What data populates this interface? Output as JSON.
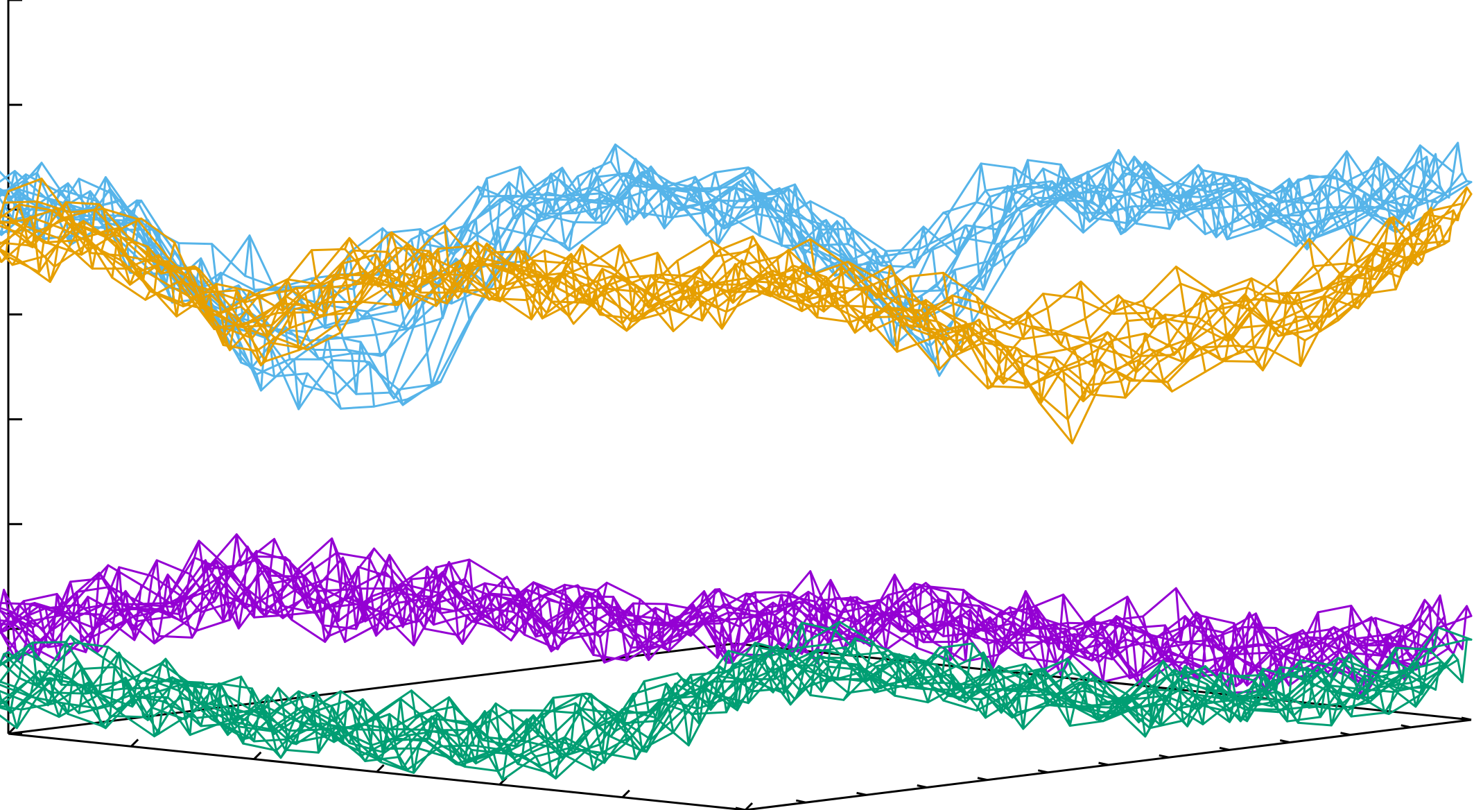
{
  "chart_data": {
    "type": "surface",
    "title": "",
    "xlabel": "",
    "ylabel": "",
    "zlabel": "",
    "tick_labels": "none",
    "z_ticks": [
      0,
      1,
      2,
      3,
      4,
      5,
      6,
      7
    ],
    "zlim": [
      0,
      7
    ],
    "x_ticks": [
      0,
      1,
      2,
      3,
      4,
      5,
      6
    ],
    "y_ticks": [
      0,
      1,
      2,
      3,
      4,
      5,
      6,
      7,
      8,
      9,
      10,
      11,
      12
    ],
    "grid": false,
    "legend": "none",
    "series": [
      {
        "color": "#56b4e9",
        "level": 5.6,
        "roughness": 0.45,
        "edge_profile": [
          5.2,
          5.0,
          3.6,
          3.4,
          5.2,
          5.5,
          5.2,
          3.9,
          5.4,
          5.2,
          4.9,
          5.3
        ]
      },
      {
        "color": "#e69f00",
        "level": 4.9,
        "roughness": 0.35,
        "edge_profile": [
          5.1,
          5.0,
          3.8,
          4.7,
          4.6,
          4.4,
          4.6,
          4.1,
          3.3,
          3.6,
          3.9,
          5.0
        ]
      },
      {
        "color": "#9400d3",
        "level": 1.4,
        "roughness": 0.55,
        "edge_profile": [
          1.1,
          1.5,
          1.8,
          1.7,
          1.6,
          1.3,
          1.4,
          1.5,
          1.1,
          0.9,
          0.7,
          0.9
        ]
      },
      {
        "color": "#009e73",
        "level": 0.6,
        "roughness": 0.35,
        "edge_profile": [
          0.8,
          0.7,
          0.4,
          0.2,
          0.1,
          0.4,
          1.2,
          1.0,
          0.6,
          0.5,
          0.5,
          0.7
        ]
      }
    ]
  }
}
